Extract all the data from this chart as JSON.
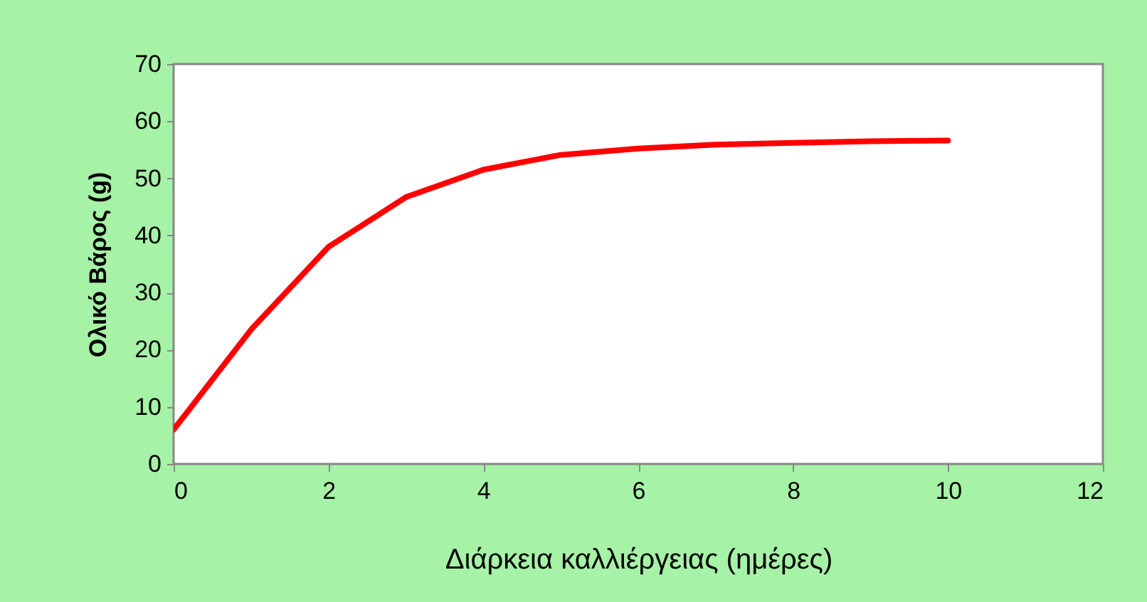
{
  "chart_data": {
    "type": "line",
    "xlabel": "Διάρκεια καλλιέργειας (ημέρες)",
    "ylabel": "Ολικό Βάρος (g)",
    "x": [
      0,
      1,
      2,
      3,
      4,
      5,
      6,
      7,
      8,
      9,
      10
    ],
    "series": [
      {
        "color": "#ff0000",
        "values": [
          6,
          23.5,
          38,
          46.7,
          51.5,
          54.1,
          55.2,
          55.9,
          56.2,
          56.5,
          56.6
        ]
      }
    ],
    "xlim": [
      0,
      12
    ],
    "xticks": [
      0,
      2,
      4,
      6,
      8,
      10,
      12
    ],
    "ylim": [
      0,
      70
    ],
    "yticks": [
      0,
      10,
      20,
      30,
      40,
      50,
      60,
      70
    ],
    "grid": false,
    "marker": "none",
    "line_style": "solid"
  }
}
